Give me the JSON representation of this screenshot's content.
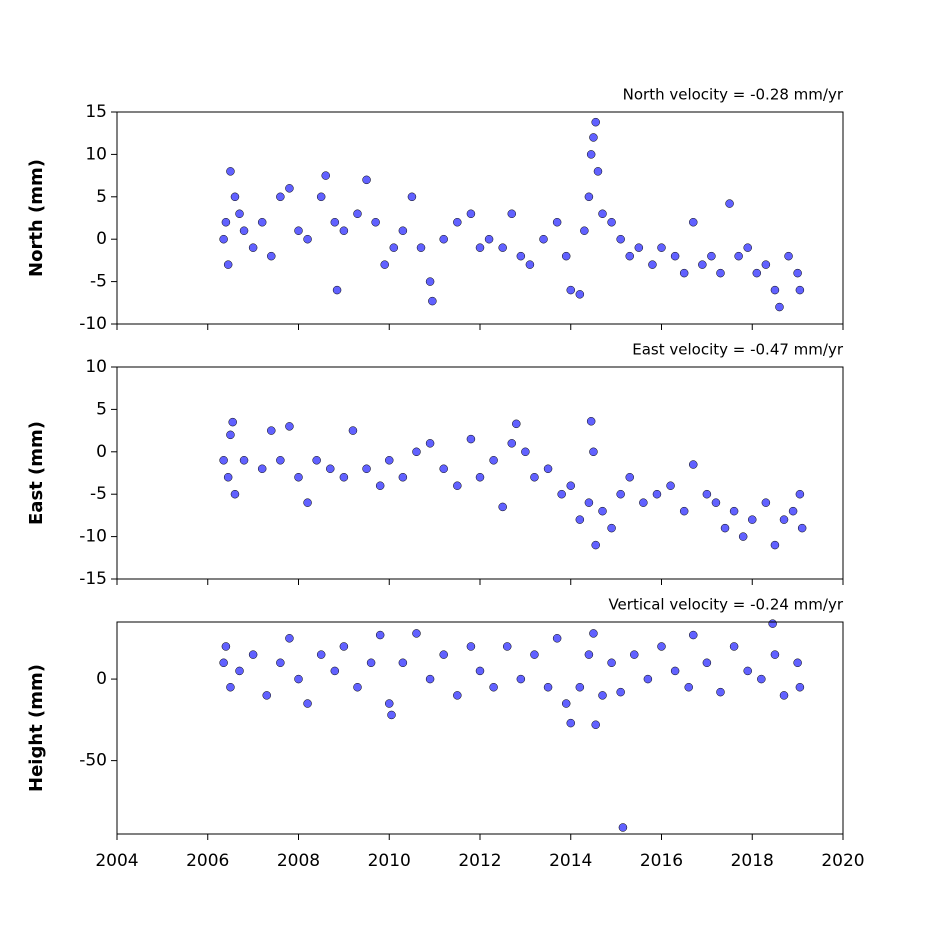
{
  "chart_data": [
    {
      "type": "scatter",
      "title": "North velocity = -0.28 mm/yr",
      "ylabel": "North (mm)",
      "color": "#5050ff",
      "xlim": [
        2004,
        2020
      ],
      "xticks": [
        2004,
        2006,
        2008,
        2010,
        2012,
        2014,
        2016,
        2018,
        2020
      ],
      "ylim": [
        -10,
        15
      ],
      "yticks": [
        -10,
        -5,
        0,
        5,
        10,
        15
      ],
      "x": [
        2006.35,
        2006.4,
        2006.45,
        2006.5,
        2006.6,
        2006.7,
        2006.8,
        2007.0,
        2007.2,
        2007.4,
        2007.6,
        2007.8,
        2008.0,
        2008.2,
        2008.5,
        2008.6,
        2008.8,
        2008.85,
        2009.0,
        2009.3,
        2009.5,
        2009.7,
        2009.9,
        2010.1,
        2010.3,
        2010.5,
        2010.7,
        2010.9,
        2010.95,
        2011.2,
        2011.5,
        2011.8,
        2012.0,
        2012.2,
        2012.5,
        2012.7,
        2012.9,
        2013.1,
        2013.4,
        2013.7,
        2013.9,
        2014.0,
        2014.2,
        2014.3,
        2014.4,
        2014.45,
        2014.5,
        2014.55,
        2014.6,
        2014.7,
        2014.9,
        2015.1,
        2015.3,
        2015.5,
        2015.8,
        2016.0,
        2016.3,
        2016.5,
        2016.7,
        2016.9,
        2017.1,
        2017.3,
        2017.5,
        2017.7,
        2017.9,
        2018.1,
        2018.3,
        2018.5,
        2018.6,
        2018.8,
        2019.0,
        2019.05
      ],
      "values": [
        0,
        2,
        -3,
        8,
        5,
        3,
        1,
        -1,
        2,
        -2,
        5,
        6,
        1,
        0,
        5,
        7.5,
        2,
        -6,
        1,
        3,
        7,
        2,
        -3,
        -1,
        1,
        5,
        -1,
        -5,
        -7.3,
        0,
        2,
        3,
        -1,
        0,
        -1,
        3,
        -2,
        -3,
        0,
        2,
        -2,
        -6,
        -6.5,
        1,
        5,
        10,
        12,
        13.8,
        8,
        3,
        2,
        0,
        -2,
        -1,
        -3,
        -1,
        -2,
        -4,
        2,
        -3,
        -2,
        -4,
        4.2,
        -2,
        -1,
        -4,
        -3,
        -6,
        -8,
        -2,
        -4,
        -6
      ]
    },
    {
      "type": "scatter",
      "title": "East velocity = -0.47 mm/yr",
      "ylabel": "East (mm)",
      "color": "#5050ff",
      "xlim": [
        2004,
        2020
      ],
      "xticks": [
        2004,
        2006,
        2008,
        2010,
        2012,
        2014,
        2016,
        2018,
        2020
      ],
      "ylim": [
        -15,
        10
      ],
      "yticks": [
        -15,
        -10,
        -5,
        0,
        5,
        10
      ],
      "x": [
        2006.35,
        2006.45,
        2006.5,
        2006.55,
        2006.6,
        2006.8,
        2007.2,
        2007.4,
        2007.6,
        2007.8,
        2008.0,
        2008.2,
        2008.4,
        2008.7,
        2009.0,
        2009.2,
        2009.5,
        2009.8,
        2010.0,
        2010.3,
        2010.6,
        2010.9,
        2011.2,
        2011.5,
        2011.8,
        2012.0,
        2012.3,
        2012.5,
        2012.7,
        2012.8,
        2013.0,
        2013.2,
        2013.5,
        2013.8,
        2014.0,
        2014.2,
        2014.4,
        2014.45,
        2014.5,
        2014.55,
        2014.7,
        2014.9,
        2015.1,
        2015.3,
        2015.6,
        2015.9,
        2016.2,
        2016.5,
        2016.7,
        2017.0,
        2017.2,
        2017.4,
        2017.6,
        2017.8,
        2018.0,
        2018.3,
        2018.5,
        2018.7,
        2018.9,
        2019.05,
        2019.1
      ],
      "values": [
        -1,
        -3,
        2,
        3.5,
        -5,
        -1,
        -2,
        2.5,
        -1,
        3,
        -3,
        -6,
        -1,
        -2,
        -3,
        2.5,
        -2,
        -4,
        -1,
        -3,
        0,
        1,
        -2,
        -4,
        1.5,
        -3,
        -1,
        -6.5,
        1,
        3.3,
        0,
        -3,
        -2,
        -5,
        -4,
        -8,
        -6,
        3.6,
        0,
        -11,
        -7,
        -9,
        -5,
        -3,
        -6,
        -5,
        -4,
        -7,
        -1.5,
        -5,
        -6,
        -9,
        -7,
        -10,
        -8,
        -6,
        -11,
        -8,
        -7,
        -5,
        -9
      ]
    },
    {
      "type": "scatter",
      "title": "Vertical velocity = -0.24 mm/yr",
      "ylabel": "Height (mm)",
      "color": "#5050ff",
      "xlim": [
        2004,
        2020
      ],
      "xticks": [
        2004,
        2006,
        2008,
        2010,
        2012,
        2014,
        2016,
        2018,
        2020
      ],
      "ylim": [
        -95,
        35
      ],
      "yticks": [
        -50,
        0
      ],
      "x": [
        2006.35,
        2006.4,
        2006.5,
        2006.7,
        2007.0,
        2007.3,
        2007.6,
        2007.8,
        2008.0,
        2008.2,
        2008.5,
        2008.8,
        2009.0,
        2009.3,
        2009.6,
        2009.8,
        2010.0,
        2010.05,
        2010.3,
        2010.6,
        2010.9,
        2011.2,
        2011.5,
        2011.8,
        2012.0,
        2012.3,
        2012.6,
        2012.9,
        2013.2,
        2013.5,
        2013.7,
        2013.9,
        2014.0,
        2014.2,
        2014.4,
        2014.5,
        2014.55,
        2014.7,
        2014.9,
        2015.1,
        2015.15,
        2015.4,
        2015.7,
        2016.0,
        2016.3,
        2016.6,
        2016.7,
        2017.0,
        2017.3,
        2017.6,
        2017.9,
        2018.2,
        2018.5,
        2018.45,
        2018.7,
        2019.0,
        2019.05
      ],
      "values": [
        10,
        20,
        -5,
        5,
        15,
        -10,
        10,
        25,
        0,
        -15,
        15,
        5,
        20,
        -5,
        10,
        27,
        -15,
        -22,
        10,
        28,
        0,
        15,
        -10,
        20,
        5,
        -5,
        20,
        0,
        15,
        -5,
        25,
        -15,
        -27,
        -5,
        15,
        28,
        -28,
        -10,
        10,
        -8,
        -91,
        15,
        0,
        20,
        5,
        -5,
        27,
        10,
        -8,
        20,
        5,
        0,
        15,
        34,
        -10,
        10,
        -5
      ]
    }
  ]
}
